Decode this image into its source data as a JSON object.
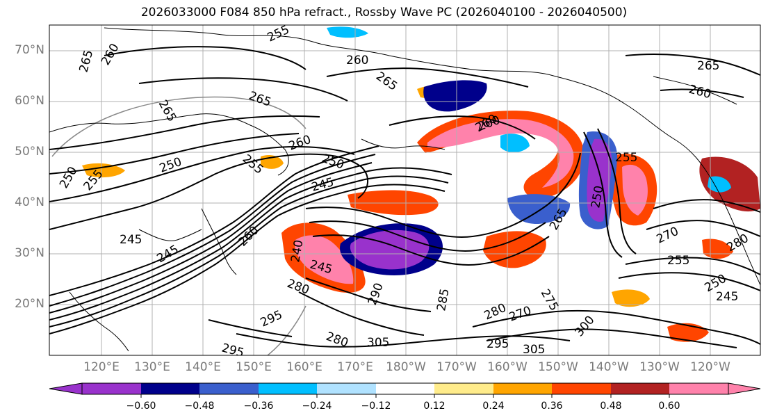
{
  "title": "2026033000 F084 850 hPa refract., Rossby Wave PC (2026040100 - 2026040500)",
  "latitude_labels": [
    "70°N",
    "60°N",
    "50°N",
    "40°N",
    "30°N",
    "20°N"
  ],
  "longitude_labels": [
    "120°E",
    "130°E",
    "140°E",
    "150°E",
    "160°E",
    "170°E",
    "180°W",
    "170°W",
    "160°W",
    "150°W",
    "140°W",
    "130°W",
    "120°W"
  ],
  "colorbar": {
    "tick_labels": [
      "−0.60",
      "−0.48",
      "−0.36",
      "−0.24",
      "−0.12",
      "0.12",
      "0.24",
      "0.36",
      "0.48",
      "0.60"
    ],
    "colors": [
      "#9932cc",
      "#00008b",
      "#3a5fcd",
      "#00bfff",
      "#b0e2ff",
      "#ffffff",
      "#ffec8b",
      "#ffa500",
      "#ff4500",
      "#b22222",
      "#ff82ab"
    ]
  },
  "contour_labels": [
    "255",
    "260",
    "265",
    "265",
    "260",
    "265",
    "265",
    "260",
    "265",
    "260",
    "260",
    "250",
    "255",
    "245",
    "250",
    "255",
    "260",
    "265",
    "250",
    "245",
    "245",
    "240",
    "245",
    "280",
    "270",
    "255",
    "250",
    "245",
    "275",
    "270",
    "280",
    "280",
    "285",
    "295",
    "295",
    "290",
    "305",
    "295",
    "305",
    "300",
    "260",
    "250",
    "255",
    "280"
  ]
}
